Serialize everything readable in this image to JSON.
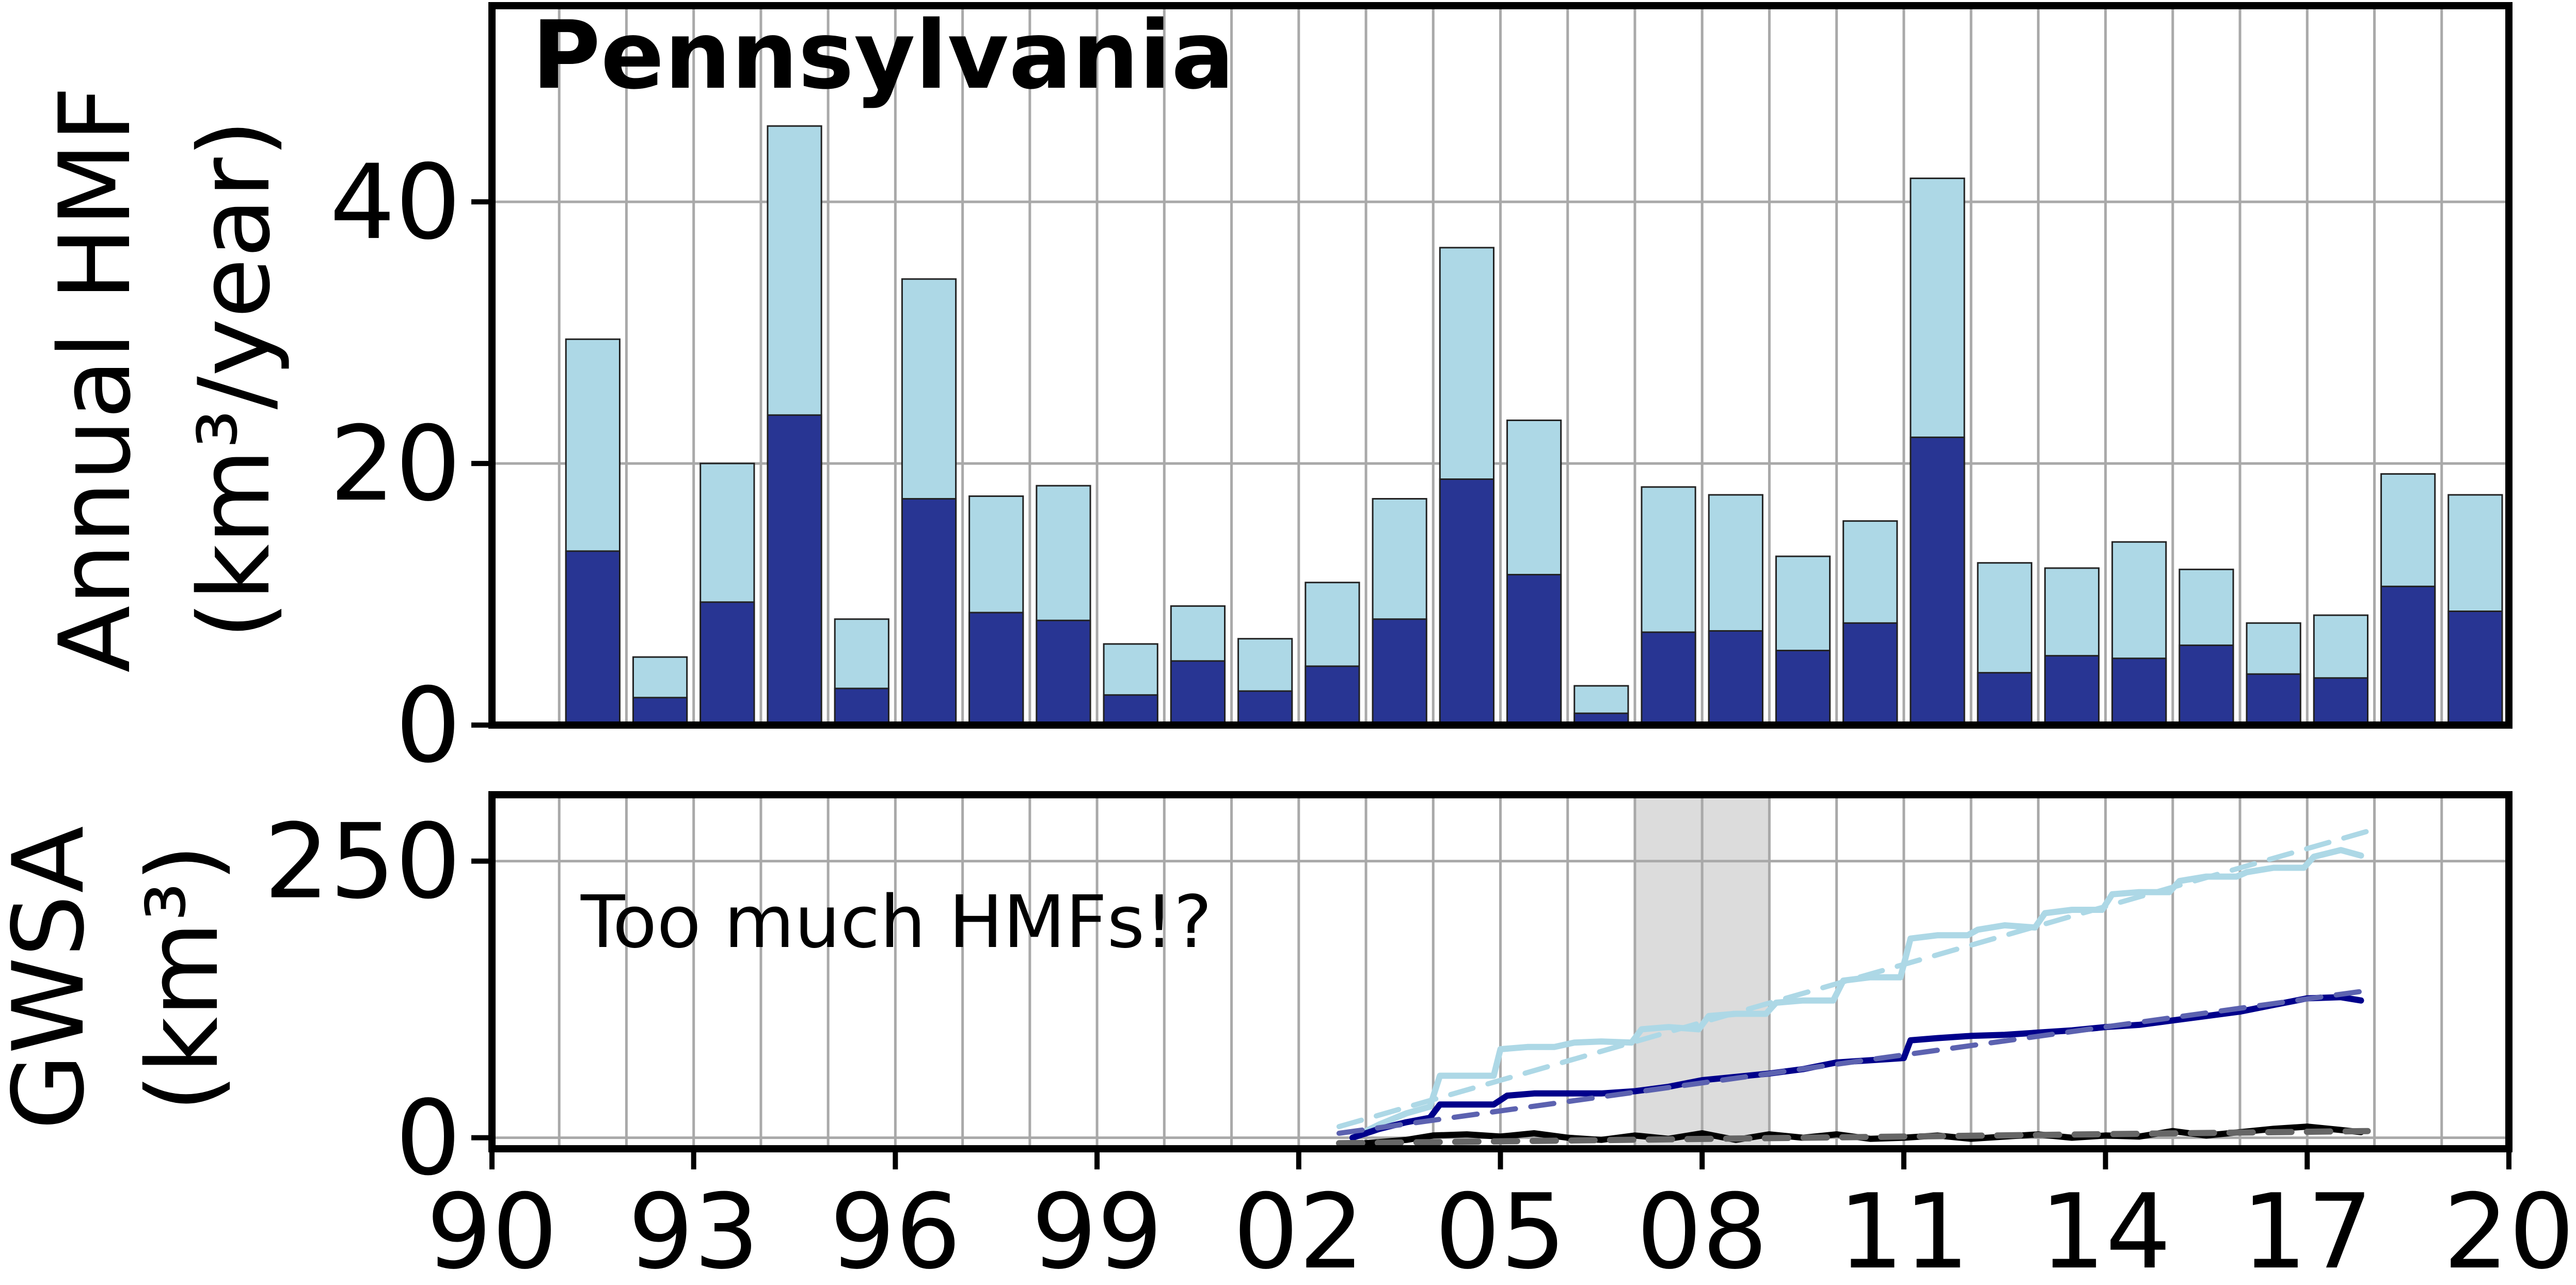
{
  "colors": {
    "light_blue": "#add8e6",
    "dark_blue": "#283593",
    "navy_line": "#00008b",
    "trend_dark": "#5c62b0",
    "black_line": "#000000",
    "grey_dash": "#666666",
    "grid": "#a9a9a9",
    "shade": "#dcdcdc"
  },
  "chart_data": [
    {
      "type": "bar",
      "title": "Pennsylvania",
      "ylabel_line1": "Annual HMF",
      "ylabel_line2": "(km³/year)",
      "xlim": [
        1990,
        2020
      ],
      "ylim": [
        0,
        55
      ],
      "yticks": [
        0,
        20,
        40
      ],
      "grid": true,
      "years": [
        1991,
        1992,
        1993,
        1994,
        1995,
        1996,
        1997,
        1998,
        1999,
        2000,
        2001,
        2002,
        2003,
        2004,
        2005,
        2006,
        2007,
        2008,
        2009,
        2010,
        2011,
        2012,
        2013,
        2014,
        2015,
        2016,
        2017,
        2018,
        2019
      ],
      "series": [
        {
          "key": "total",
          "values": [
            29.5,
            5.2,
            20.0,
            45.8,
            8.1,
            34.1,
            17.5,
            18.3,
            6.2,
            9.1,
            6.6,
            10.9,
            17.3,
            36.5,
            23.3,
            3.0,
            18.2,
            17.6,
            12.9,
            15.6,
            41.8,
            12.4,
            12.0,
            14.0,
            11.9,
            7.8,
            8.4,
            19.2,
            17.6
          ]
        },
        {
          "key": "lower",
          "values": [
            13.3,
            2.1,
            9.4,
            23.7,
            2.8,
            17.3,
            8.6,
            8.0,
            2.3,
            4.9,
            2.6,
            4.5,
            8.1,
            18.8,
            11.5,
            0.9,
            7.1,
            7.2,
            5.7,
            7.8,
            22.0,
            4.0,
            5.3,
            5.1,
            6.1,
            3.9,
            3.6,
            10.6,
            8.7
          ]
        }
      ]
    },
    {
      "type": "line",
      "ylabel_line1": "GWSA",
      "ylabel_line2": "(km³)",
      "annotation": "Too much HMFs!?",
      "xlim": [
        1990,
        2020
      ],
      "ylim": [
        -10,
        310
      ],
      "yticks": [
        0,
        250
      ],
      "xtick_labels": [
        "90",
        "93",
        "96",
        "99",
        "02",
        "05",
        "08",
        "11",
        "14",
        "17",
        "20"
      ],
      "xtick_values": [
        1990,
        1993,
        1996,
        1999,
        2002,
        2005,
        2008,
        2011,
        2014,
        2017,
        2020
      ],
      "shaded_span": [
        2007,
        2009
      ],
      "grid": true,
      "series": [
        {
          "key": "light",
          "x": [
            2002.8,
            2003.2,
            2003.6,
            2003.95,
            2004.1,
            2004.5,
            2004.9,
            2005.0,
            2005.4,
            2005.8,
            2006.1,
            2006.5,
            2006.95,
            2007.1,
            2007.5,
            2007.95,
            2008.1,
            2008.5,
            2008.95,
            2009.1,
            2009.5,
            2009.95,
            2010.1,
            2010.5,
            2010.95,
            2011.1,
            2011.5,
            2011.95,
            2012.1,
            2012.5,
            2012.95,
            2013.1,
            2013.5,
            2013.95,
            2014.1,
            2014.5,
            2014.95,
            2015.1,
            2015.5,
            2015.95,
            2016.1,
            2016.5,
            2016.95,
            2017.1,
            2017.5,
            2017.8
          ],
          "values": [
            0,
            12,
            22,
            28,
            56,
            56,
            56,
            80,
            82,
            82,
            86,
            87,
            86,
            98,
            100,
            98,
            110,
            112,
            112,
            122,
            124,
            124,
            142,
            145,
            145,
            180,
            183,
            183,
            188,
            192,
            190,
            203,
            206,
            206,
            220,
            222,
            222,
            232,
            236,
            236,
            240,
            244,
            244,
            254,
            260,
            255
          ]
        },
        {
          "key": "dark",
          "x": [
            2002.8,
            2003.2,
            2003.6,
            2003.95,
            2004.1,
            2004.5,
            2004.9,
            2005.1,
            2005.5,
            2006.0,
            2006.5,
            2007.0,
            2007.5,
            2008.0,
            2008.5,
            2009.0,
            2009.5,
            2010.0,
            2010.5,
            2011.0,
            2011.1,
            2011.5,
            2012.0,
            2012.5,
            2013.0,
            2013.5,
            2014.0,
            2014.5,
            2015.0,
            2015.5,
            2016.0,
            2016.5,
            2017.0,
            2017.5,
            2017.8
          ],
          "values": [
            0,
            8,
            14,
            18,
            30,
            30,
            30,
            38,
            40,
            40,
            40,
            42,
            46,
            52,
            55,
            58,
            62,
            68,
            70,
            72,
            88,
            90,
            92,
            93,
            95,
            97,
            100,
            102,
            106,
            110,
            114,
            120,
            126,
            127,
            124
          ]
        },
        {
          "key": "black",
          "x": [
            2002.8,
            2003.2,
            2003.6,
            2004.0,
            2004.5,
            2005.0,
            2005.5,
            2006.0,
            2006.5,
            2007.0,
            2007.5,
            2008.0,
            2008.5,
            2009.0,
            2009.5,
            2010.0,
            2010.5,
            2011.0,
            2011.5,
            2012.0,
            2012.5,
            2013.0,
            2013.5,
            2014.0,
            2014.5,
            2015.0,
            2015.5,
            2016.0,
            2016.5,
            2017.0,
            2017.5,
            2017.8
          ],
          "values": [
            -6,
            -4,
            -2,
            2,
            3,
            1,
            4,
            0,
            -2,
            2,
            -1,
            4,
            -2,
            3,
            0,
            3,
            -1,
            0,
            2,
            -1,
            1,
            3,
            0,
            2,
            1,
            6,
            2,
            5,
            8,
            10,
            7,
            5
          ]
        },
        {
          "key": "light_trend",
          "x": [
            2002.6,
            2017.9
          ],
          "values": [
            10,
            277
          ]
        },
        {
          "key": "dark_trend",
          "x": [
            2002.6,
            2017.9
          ],
          "values": [
            4,
            133
          ]
        },
        {
          "key": "black_trend",
          "x": [
            2002.6,
            2017.9
          ],
          "values": [
            -5,
            6
          ]
        }
      ]
    }
  ]
}
